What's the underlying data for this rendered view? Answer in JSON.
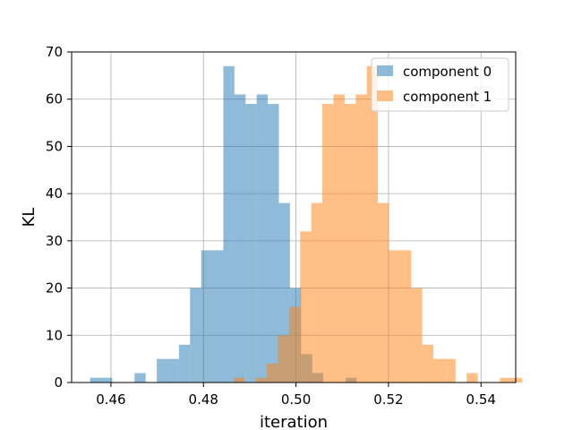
{
  "chart_data": {
    "type": "histogram",
    "title": "",
    "xlabel": "iteration",
    "ylabel": "KL",
    "xlim": [
      0.4515,
      0.5475
    ],
    "ylim": [
      0,
      70
    ],
    "xticks": [
      "0.46",
      "0.48",
      "0.50",
      "0.52",
      "0.54"
    ],
    "xtick_values": [
      0.46,
      0.48,
      0.5,
      0.52,
      0.54
    ],
    "yticks": [
      "0",
      "10",
      "20",
      "30",
      "40",
      "50",
      "60",
      "70"
    ],
    "ytick_values": [
      0,
      10,
      20,
      30,
      40,
      50,
      60,
      70
    ],
    "grid": true,
    "legend_position": "top-right",
    "series": [
      {
        "name": "component 0",
        "color": "#1f77b4",
        "alpha": 0.5,
        "bin_start": 0.4555,
        "bin_width": 0.0024,
        "counts": [
          1,
          1,
          0,
          0,
          2,
          0,
          5,
          5,
          8,
          20,
          28,
          28,
          67,
          61,
          59,
          61,
          59,
          38,
          20,
          6,
          2,
          0,
          0,
          1
        ]
      },
      {
        "name": "component 1",
        "color": "#ff7f0e",
        "alpha": 0.5,
        "bin_start": 0.4865,
        "bin_width": 0.0024,
        "counts": [
          1,
          0,
          1,
          4,
          10,
          16,
          32,
          38,
          59,
          61,
          59,
          61,
          67,
          38,
          28,
          28,
          20,
          8,
          5,
          5,
          0,
          2,
          0,
          0,
          1,
          1
        ]
      }
    ]
  }
}
